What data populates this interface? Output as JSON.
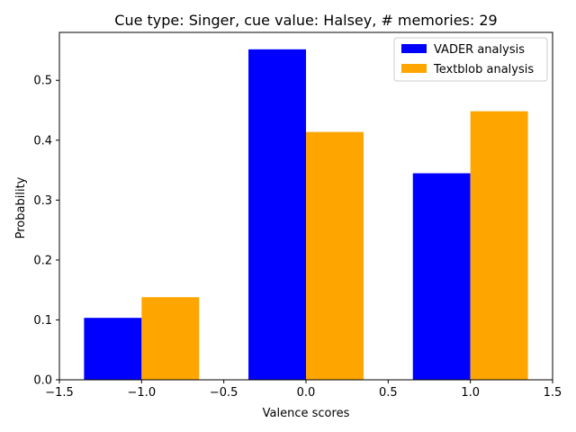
{
  "chart_data": {
    "type": "bar",
    "title": "Cue type: Singer, cue value: Halsey, # memories: 29",
    "xlabel": "Valence scores",
    "ylabel": "Probability",
    "xlim": [
      -1.5,
      1.5
    ],
    "ylim": [
      0,
      0.58
    ],
    "xticks": [
      -1.5,
      -1.0,
      -0.5,
      0.0,
      0.5,
      1.0,
      1.5
    ],
    "xtick_labels": [
      "−1.5",
      "−1.0",
      "−0.5",
      "0.0",
      "0.5",
      "1.0",
      "1.5"
    ],
    "yticks": [
      0.0,
      0.1,
      0.2,
      0.3,
      0.4,
      0.5
    ],
    "ytick_labels": [
      "0.0",
      "0.1",
      "0.2",
      "0.3",
      "0.4",
      "0.5"
    ],
    "x": [
      -1,
      0,
      1
    ],
    "bar_width": 0.35,
    "series": [
      {
        "name": "VADER analysis",
        "color": "#0000ff",
        "values": [
          0.1034,
          0.5517,
          0.3448
        ],
        "x_offset": -0.175
      },
      {
        "name": "Textblob analysis",
        "color": "#ffa500",
        "values": [
          0.1379,
          0.4138,
          0.4483
        ],
        "x_offset": 0.175
      }
    ],
    "legend_position": "top-right",
    "grid": false
  }
}
